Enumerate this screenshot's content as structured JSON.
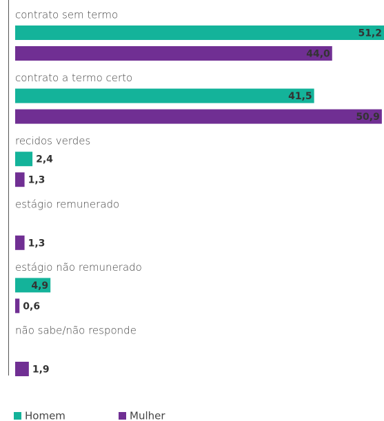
{
  "chart_data": {
    "type": "bar",
    "orientation": "horizontal",
    "categories": [
      "contrato sem termo",
      "contrato a termo certo",
      "recidos verdes",
      "estágio remunerado",
      "estágio não remunerado",
      "não sabe/não responde"
    ],
    "series": [
      {
        "name": "Homem",
        "color": "#14b39a",
        "values": [
          51.2,
          41.5,
          2.4,
          null,
          4.9,
          null
        ],
        "value_labels": [
          "51,2",
          "41,5",
          "2,4",
          null,
          "4,9",
          null
        ]
      },
      {
        "name": "Mulher",
        "color": "#702f93",
        "values": [
          44.0,
          50.9,
          1.3,
          1.3,
          0.6,
          1.9
        ],
        "value_labels": [
          "44,0",
          "50,9",
          "1,3",
          "1,3",
          "0,6",
          "1,9"
        ]
      }
    ],
    "legend": "bottom-left"
  }
}
